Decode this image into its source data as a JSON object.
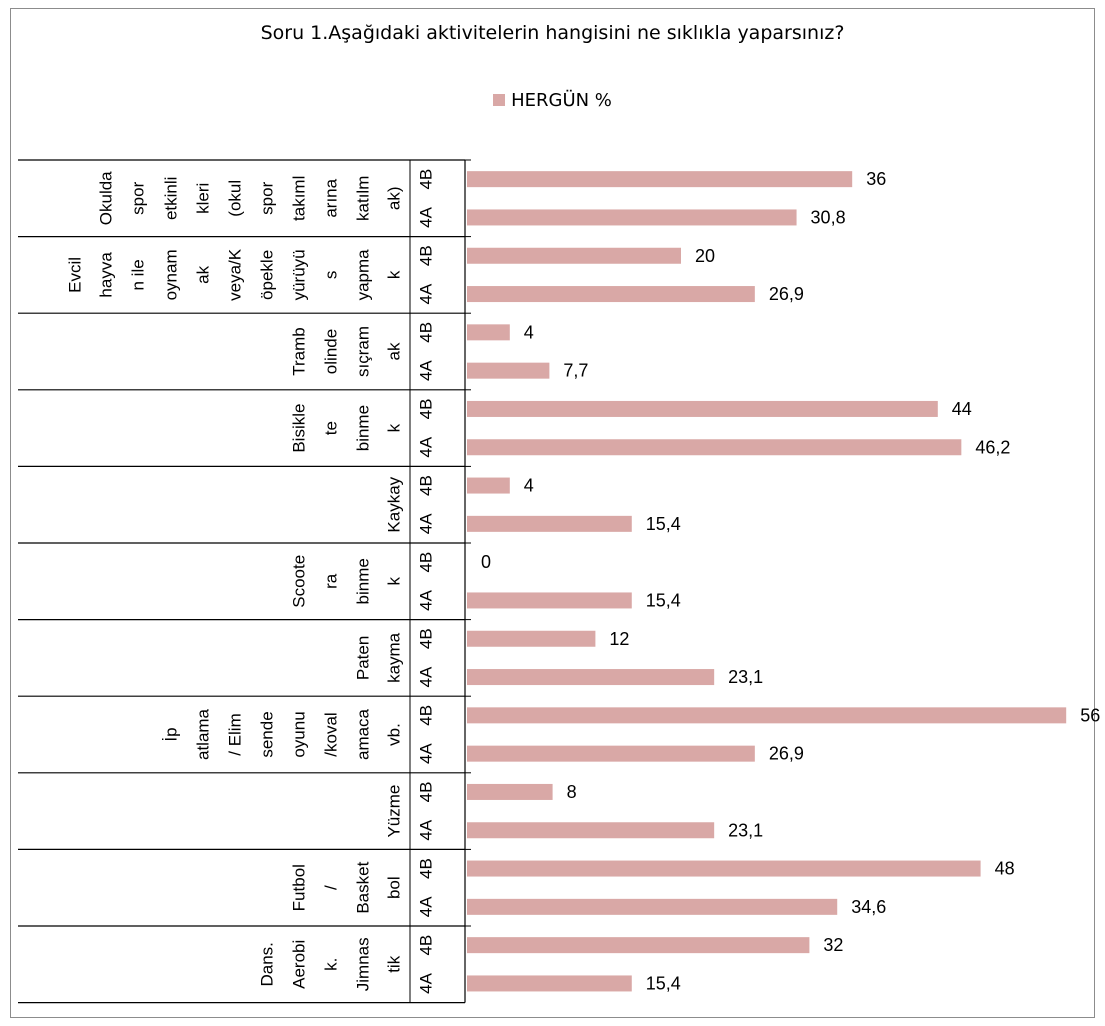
{
  "chart_data": {
    "type": "bar",
    "orientation": "horizontal",
    "title": "Soru 1.Aşağıdaki aktivitelerin hangisini ne sıklıkla yaparsınız?",
    "legend": {
      "position": "top",
      "entries": [
        "HERGÜN %"
      ]
    },
    "bar_color": "#d9a8a6",
    "xlim": [
      0,
      56
    ],
    "grid": false,
    "series": [
      {
        "name": "HERGÜN %",
        "groups": [
          {
            "lines": [
              "Okulda",
              "spor",
              "etkinli",
              "kleri",
              "(okul",
              "spor",
              "takıml",
              "arına",
              "katılm",
              "ak)"
            ],
            "bars": [
              {
                "cls": "4B",
                "value": 36,
                "text": "36"
              },
              {
                "cls": "4A",
                "value": 30.8,
                "text": "30,8"
              }
            ]
          },
          {
            "lines": [
              "Evcil",
              "hayva",
              "n ile",
              "oynam",
              "ak",
              "veya/K",
              "öpekle",
              "yürüyü",
              "s",
              "yapma",
              "k"
            ],
            "bars": [
              {
                "cls": "4B",
                "value": 20,
                "text": "20"
              },
              {
                "cls": "4A",
                "value": 26.9,
                "text": "26,9"
              }
            ]
          },
          {
            "lines": [
              "Tramb",
              "olinde",
              "sıçram",
              "ak"
            ],
            "bars": [
              {
                "cls": "4B",
                "value": 4,
                "text": "4"
              },
              {
                "cls": "4A",
                "value": 7.7,
                "text": "7,7"
              }
            ]
          },
          {
            "lines": [
              "Bisikle",
              "te",
              "binme",
              "k"
            ],
            "bars": [
              {
                "cls": "4B",
                "value": 44,
                "text": "44"
              },
              {
                "cls": "4A",
                "value": 46.2,
                "text": "46,2"
              }
            ]
          },
          {
            "lines": [
              "Kaykay"
            ],
            "bars": [
              {
                "cls": "4B",
                "value": 4,
                "text": "4"
              },
              {
                "cls": "4A",
                "value": 15.4,
                "text": "15,4"
              }
            ]
          },
          {
            "lines": [
              "Scoote",
              "ra",
              "binme",
              "k"
            ],
            "bars": [
              {
                "cls": "4B",
                "value": 0,
                "text": "0"
              },
              {
                "cls": "4A",
                "value": 15.4,
                "text": "15,4"
              }
            ]
          },
          {
            "lines": [
              "Paten",
              "kayma"
            ],
            "bars": [
              {
                "cls": "4B",
                "value": 12,
                "text": "12"
              },
              {
                "cls": "4A",
                "value": 23.1,
                "text": "23,1"
              }
            ]
          },
          {
            "lines": [
              "İp",
              "atlama",
              "/ Elim",
              "sende",
              "oyunu",
              "/koval",
              "amaca",
              "vb."
            ],
            "bars": [
              {
                "cls": "4B",
                "value": 56,
                "text": "56"
              },
              {
                "cls": "4A",
                "value": 26.9,
                "text": "26,9"
              }
            ]
          },
          {
            "lines": [
              "Yüzme"
            ],
            "bars": [
              {
                "cls": "4B",
                "value": 8,
                "text": "8"
              },
              {
                "cls": "4A",
                "value": 23.1,
                "text": "23,1"
              }
            ]
          },
          {
            "lines": [
              "Futbol",
              "/",
              "Basket",
              "bol"
            ],
            "bars": [
              {
                "cls": "4B",
                "value": 48,
                "text": "48"
              },
              {
                "cls": "4A",
                "value": 34.6,
                "text": "34,6"
              }
            ]
          },
          {
            "lines": [
              "Dans.",
              "Aerobi",
              "k.",
              "Jimnas",
              "tik"
            ],
            "bars": [
              {
                "cls": "4B",
                "value": 32,
                "text": "32"
              },
              {
                "cls": "4A",
                "value": 15.4,
                "text": "15,4"
              }
            ]
          }
        ]
      }
    ]
  }
}
